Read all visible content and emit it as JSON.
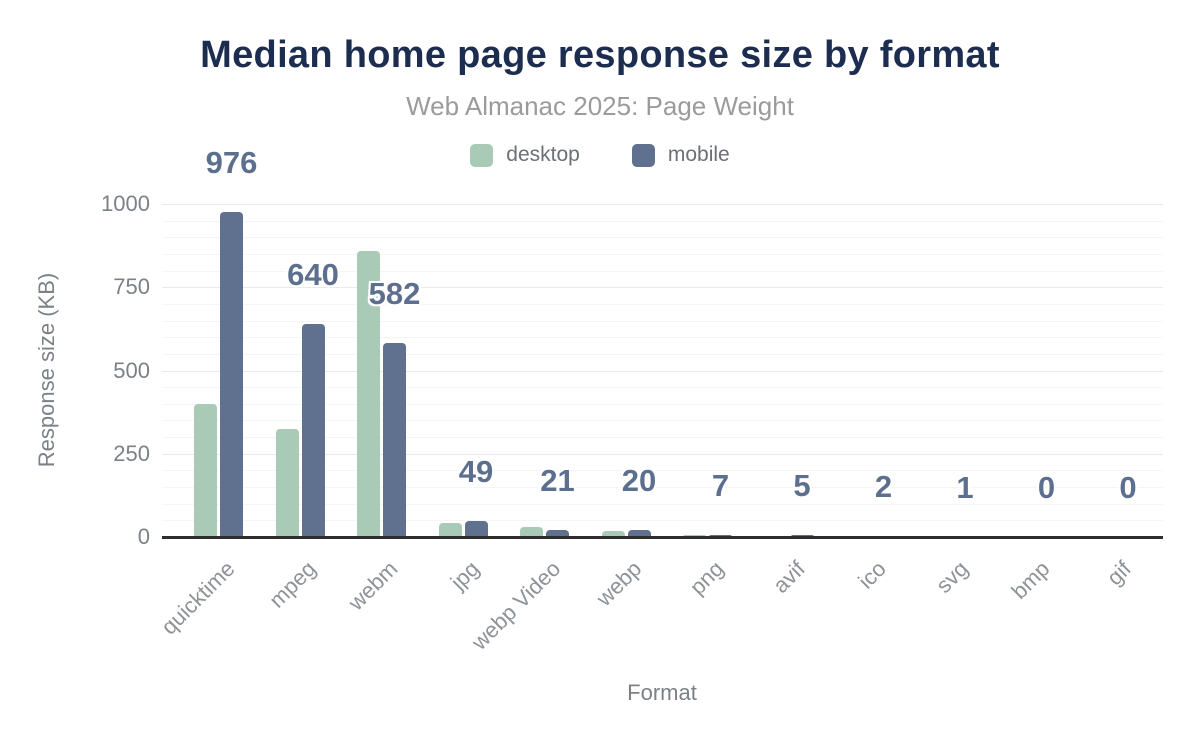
{
  "chart_data": {
    "type": "bar",
    "title": "Median home page response size by format",
    "subtitle": "Web Almanac 2025: Page Weight",
    "xlabel": "Format",
    "ylabel": "Response size (KB)",
    "categories": [
      "quicktime",
      "mpeg",
      "webm",
      "jpg",
      "webp Video",
      "webp",
      "png",
      "avif",
      "ico",
      "svg",
      "bmp",
      "gif"
    ],
    "series": [
      {
        "name": "desktop",
        "color": "#a8cab7",
        "values": [
          400,
          325,
          860,
          42,
          29,
          18,
          6,
          4,
          2,
          1,
          0,
          0
        ]
      },
      {
        "name": "mobile",
        "color": "#5f718e",
        "values": [
          976,
          640,
          582,
          49,
          21,
          20,
          7,
          5,
          2,
          1,
          0,
          0
        ]
      }
    ],
    "bar_labels": {
      "labeled_series": "mobile",
      "values": [
        "976",
        "640",
        "582",
        "49",
        "21",
        "20",
        "7",
        "5",
        "2",
        "1",
        "0",
        "0"
      ],
      "color": "#5d6f8e"
    },
    "ylim": [
      0,
      1000
    ],
    "yticks": [
      "0",
      "250",
      "500",
      "750",
      "1000"
    ],
    "ytick_values": [
      0,
      250,
      500,
      750,
      1000
    ],
    "minor_tick_step": 50,
    "grid": true,
    "legend_position": "top"
  }
}
